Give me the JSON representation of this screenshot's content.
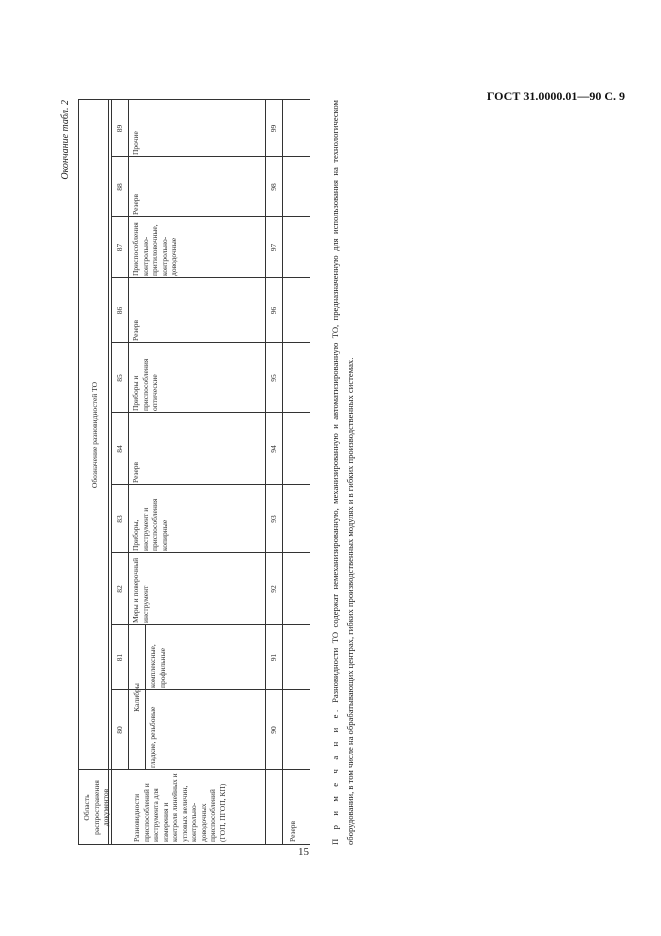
{
  "header": "ГОСТ 31.0000.01—90 С. 9",
  "page_number": "15",
  "continuation": "Окончание табл. 2",
  "table": {
    "col_header_scope": "Область распространения документов",
    "col_header_group": "Обозначение разновидностей ТО",
    "codes_row1": [
      "80",
      "81",
      "82",
      "83",
      "84",
      "85",
      "86",
      "87",
      "88",
      "89"
    ],
    "codes_row2": [
      "90",
      "91",
      "92",
      "93",
      "94",
      "95",
      "96",
      "97",
      "98",
      "99"
    ],
    "row1_scope": "Разновидности приспособлений и инструмента для измерения и контроля линейных и угловых величин, контрольно-доводочных приспособлений (ГОП, ПГОП, КП)",
    "kalibry": "Калибры",
    "cells": [
      "гладкие, резьбовые",
      "комплексные, профильные",
      "Меры и поверочный инструмент",
      "Приборы, инструмент и приспособления копирные",
      "Резерв",
      "Приборы и приспособления оптические",
      "Резерв",
      "Приспособления контрольно-притиловочные, контрольно-доводочные",
      "Резерв",
      "Прочие"
    ],
    "row2_scope": "Резерв"
  },
  "note": {
    "label": "П р и м е ч а н и е.",
    "text": "Разновидности ТО содержат немеханизированную, механизированную и автоматизированную ТО, предназначенную для использования на технологическом оборудовании, в том числе на обрабатывающих центрах, гибких производственных модулях и в гибких производственных системах."
  }
}
